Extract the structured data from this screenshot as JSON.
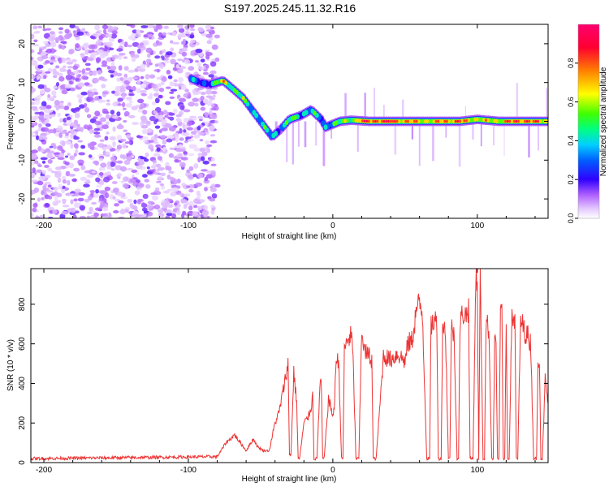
{
  "title": "S197.2025.245.11.32.R16",
  "chart_data": [
    {
      "type": "heatmap",
      "xlabel": "Height of straight line (km)",
      "ylabel": "Frequency (Hz)",
      "xlim": [
        -209,
        149
      ],
      "ylim": [
        -25,
        25
      ],
      "xticks": [
        -200,
        -100,
        0,
        100
      ],
      "yticks": [
        -20,
        -10,
        0,
        10,
        20
      ],
      "colorbar": {
        "label": "Normalized spectral amplitude",
        "range": [
          0,
          1
        ],
        "ticks": [
          "0.0",
          "0.2",
          "0.4",
          "0.6",
          "0.8"
        ],
        "colors": [
          "#ffffff",
          "#cc99ff",
          "#7a00ff",
          "#0000ff",
          "#00c8ff",
          "#00ff80",
          "#80ff00",
          "#ffff00",
          "#ff8000",
          "#ff0050"
        ]
      },
      "noise_region_km": [
        -209,
        -80
      ],
      "ridge": [
        {
          "x": -98,
          "f": 11,
          "a": 0.35
        },
        {
          "x": -92,
          "f": 10,
          "a": 0.25
        },
        {
          "x": -85,
          "f": 9.5,
          "a": 0.3
        },
        {
          "x": -76,
          "f": 10.5,
          "a": 0.75
        },
        {
          "x": -68,
          "f": 8,
          "a": 0.5
        },
        {
          "x": -62,
          "f": 6,
          "a": 0.55
        },
        {
          "x": -55,
          "f": 2.5,
          "a": 0.45
        },
        {
          "x": -48,
          "f": -1,
          "a": 0.4
        },
        {
          "x": -42,
          "f": -4,
          "a": 0.45
        },
        {
          "x": -36,
          "f": -2,
          "a": 0.3
        },
        {
          "x": -30,
          "f": 0.5,
          "a": 0.55
        },
        {
          "x": -22,
          "f": 1.5,
          "a": 0.4
        },
        {
          "x": -15,
          "f": 3,
          "a": 0.45
        },
        {
          "x": -8,
          "f": 0.5,
          "a": 0.35
        },
        {
          "x": -5,
          "f": -1.5,
          "a": 0.4
        },
        {
          "x": 5,
          "f": 0,
          "a": 0.55
        },
        {
          "x": 13,
          "f": 0.3,
          "a": 0.6
        },
        {
          "x": 25,
          "f": 0,
          "a": 0.95
        },
        {
          "x": 40,
          "f": 0,
          "a": 0.95
        },
        {
          "x": 55,
          "f": 0,
          "a": 0.75
        },
        {
          "x": 70,
          "f": 0,
          "a": 0.7
        },
        {
          "x": 88,
          "f": 0,
          "a": 0.9
        },
        {
          "x": 100,
          "f": 0.5,
          "a": 0.65
        },
        {
          "x": 115,
          "f": 0,
          "a": 0.7
        },
        {
          "x": 125,
          "f": 0,
          "a": 0.9
        },
        {
          "x": 140,
          "f": 0,
          "a": 0.85
        },
        {
          "x": 149,
          "f": 0,
          "a": 0.7
        }
      ]
    },
    {
      "type": "line",
      "xlabel": "Height of straight line (km)",
      "ylabel": "SNR (10 * v/v)",
      "xlim": [
        -209,
        149
      ],
      "ylim": [
        0,
        980
      ],
      "xticks": [
        -200,
        -100,
        0,
        100
      ],
      "yticks": [
        0,
        200,
        400,
        600,
        800
      ],
      "line_color": "#ee3333",
      "series": [
        {
          "name": "SNR",
          "x": [
            -209,
            -80,
            -74,
            -68,
            -63,
            -60,
            -55,
            -52,
            -48,
            -44,
            -40,
            -37,
            -33,
            -31,
            -30,
            -29,
            -27,
            -25,
            -24,
            -23,
            -20,
            -17,
            -15,
            -14,
            -13,
            -11,
            -9,
            -8,
            -7,
            -6,
            -3,
            0,
            1,
            2,
            4,
            6,
            7,
            8,
            10,
            13,
            14,
            16,
            18,
            20,
            22,
            25,
            27,
            28,
            30,
            35,
            40,
            45,
            50,
            52,
            55,
            58,
            60,
            62,
            65,
            67,
            68,
            72,
            73,
            75,
            76,
            78,
            80,
            81,
            82,
            84,
            86,
            87,
            88,
            90,
            92,
            94,
            95,
            97,
            99,
            100,
            101,
            102,
            104,
            105,
            106,
            108,
            110,
            111,
            112,
            113,
            114,
            115,
            116,
            117,
            118,
            119,
            120,
            121,
            122,
            124,
            126,
            127,
            128,
            130,
            133,
            135,
            137,
            139,
            141,
            142,
            143,
            144,
            145,
            147,
            149
          ],
          "y": [
            20,
            30,
            100,
            140,
            90,
            60,
            120,
            80,
            60,
            60,
            200,
            260,
            420,
            500,
            40,
            40,
            460,
            300,
            20,
            20,
            200,
            230,
            280,
            340,
            20,
            20,
            380,
            420,
            20,
            20,
            320,
            240,
            260,
            500,
            520,
            20,
            20,
            560,
            620,
            640,
            520,
            20,
            20,
            680,
            560,
            540,
            520,
            20,
            20,
            540,
            520,
            550,
            510,
            600,
            620,
            780,
            800,
            760,
            20,
            20,
            700,
            720,
            20,
            20,
            700,
            660,
            20,
            20,
            680,
            650,
            20,
            20,
            700,
            760,
            740,
            780,
            20,
            20,
            960,
            880,
            20,
            940,
            20,
            20,
            700,
            680,
            20,
            20,
            620,
            600,
            20,
            20,
            760,
            740,
            20,
            20,
            700,
            20,
            20,
            760,
            700,
            20,
            20,
            720,
            660,
            640,
            600,
            20,
            20,
            520,
            540,
            20,
            20,
            420,
            300
          ]
        }
      ]
    }
  ]
}
